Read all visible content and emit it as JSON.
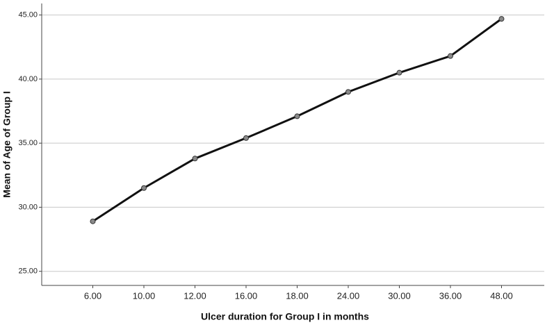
{
  "chart_data": {
    "type": "line",
    "x_label": "Ulcer duration for Group I in months",
    "y_label": "Mean of Age of Group I",
    "categories": [
      "6.00",
      "10.00",
      "12.00",
      "16.00",
      "18.00",
      "24.00",
      "30.00",
      "36.00",
      "48.00"
    ],
    "series": [
      {
        "color": "#111111",
        "values": [
          28.9,
          31.5,
          33.8,
          35.4,
          37.1,
          39.0,
          40.5,
          41.8,
          44.7
        ]
      }
    ],
    "ylim": [
      23.9,
      45.9
    ],
    "yticks": [
      {
        "value": 25,
        "label": "25.00"
      },
      {
        "value": 30,
        "label": "30.00"
      },
      {
        "value": 35,
        "label": "35.00"
      },
      {
        "value": 40,
        "label": "40.00"
      },
      {
        "value": 45,
        "label": "45.00"
      }
    ],
    "grid": true
  }
}
